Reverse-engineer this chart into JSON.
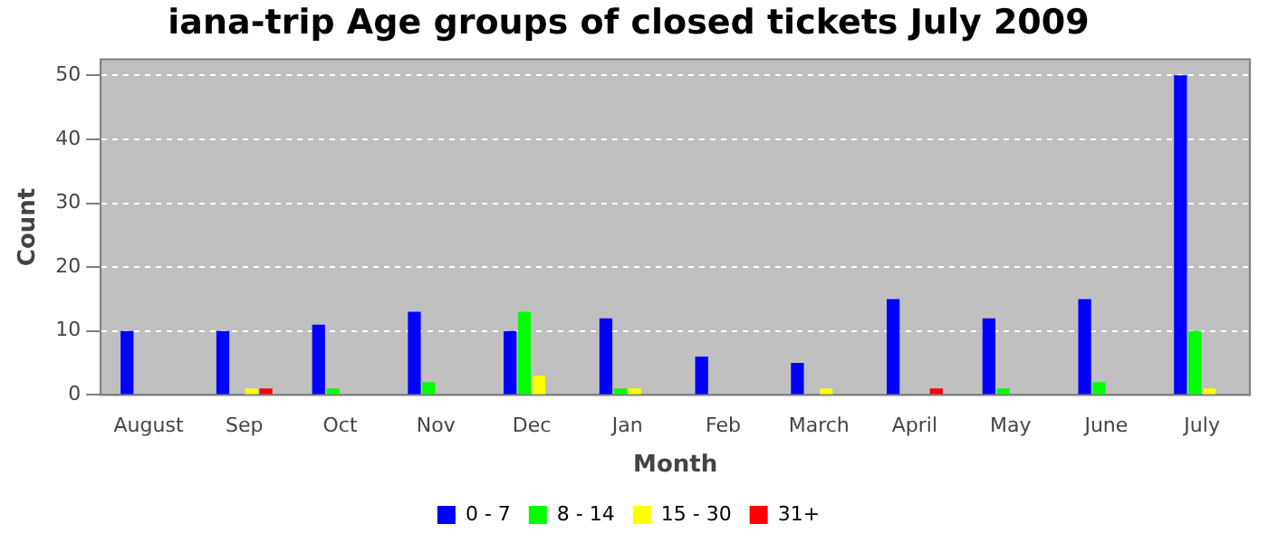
{
  "chart_data": {
    "type": "bar",
    "title": "iana-trip Age groups of closed tickets July 2009",
    "xlabel": "Month",
    "ylabel": "Count",
    "categories": [
      "August",
      "Sep",
      "Oct",
      "Nov",
      "Dec",
      "Jan",
      "Feb",
      "March",
      "April",
      "May",
      "June",
      "July"
    ],
    "series": [
      {
        "name": "0 - 7",
        "color": "#0000ff",
        "values": [
          10,
          10,
          11,
          13,
          10,
          12,
          6,
          5,
          15,
          12,
          15,
          50
        ]
      },
      {
        "name": "8 - 14",
        "color": "#00ff00",
        "values": [
          0,
          0,
          1,
          2,
          13,
          1,
          0,
          0,
          0,
          1,
          2,
          10
        ]
      },
      {
        "name": "15 - 30",
        "color": "#ffff00",
        "values": [
          0,
          1,
          0,
          0,
          3,
          1,
          0,
          1,
          0,
          0,
          0,
          1
        ]
      },
      {
        "name": "31+",
        "color": "#ff0000",
        "values": [
          0,
          1,
          0,
          0,
          0,
          0,
          0,
          0,
          1,
          0,
          0,
          0
        ]
      }
    ],
    "ylim": [
      0,
      52.5
    ],
    "yticks": [
      0,
      10,
      20,
      30,
      40,
      50
    ],
    "grid": "y",
    "legend": "bottom"
  }
}
